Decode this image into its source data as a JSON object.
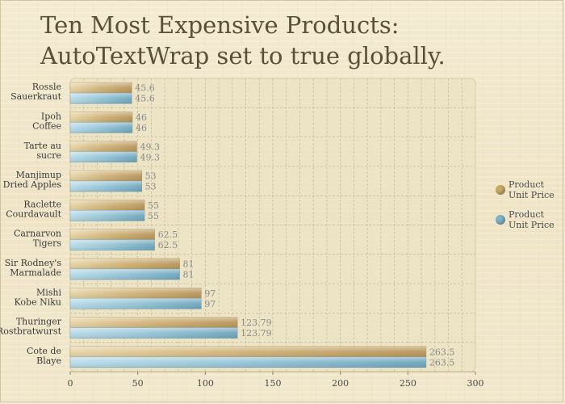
{
  "title": {
    "line1": "Ten Most Expensive Products:",
    "line2": "AutoTextWrap set to true globally."
  },
  "colors": {
    "series1": "#c9a865",
    "series2": "#7fb3c8",
    "value_label": "#8a8a8a",
    "grid": "#c9be9a",
    "plot_bg": "#ebe3c3"
  },
  "chart_data": {
    "type": "bar",
    "orientation": "horizontal",
    "categories": [
      [
        "Rossle",
        "Sauerkraut"
      ],
      [
        "Ipoh",
        "Coffee"
      ],
      [
        "Tarte au",
        "sucre"
      ],
      [
        "Manjimup",
        "Dried Apples"
      ],
      [
        "Raclette",
        "Courdavault"
      ],
      [
        "Carnarvon",
        "Tigers"
      ],
      [
        "Sir Rodney's",
        "Marmalade"
      ],
      [
        "Mishi",
        "Kobe Niku"
      ],
      [
        "Thuringer",
        "Rostbratwurst"
      ],
      [
        "Cote de",
        "Blaye"
      ]
    ],
    "series": [
      {
        "name": "Product Unit Price",
        "legend_lines": [
          "Product",
          "Unit Price"
        ],
        "color": "#c9a865",
        "values": [
          45.6,
          46,
          49.3,
          53,
          55,
          62.5,
          81,
          97,
          123.79,
          263.5
        ],
        "labels": [
          "45.6",
          "46",
          "49.3",
          "53",
          "55",
          "62.5",
          "81",
          "97",
          "123.79",
          "263.5"
        ]
      },
      {
        "name": "Product Unit Price",
        "legend_lines": [
          "Product",
          "Unit Price"
        ],
        "color": "#7fb3c8",
        "values": [
          45.6,
          46,
          49.3,
          53,
          55,
          62.5,
          81,
          97,
          123.79,
          263.5
        ],
        "labels": [
          "45.6",
          "46",
          "49.3",
          "53",
          "55",
          "62.5",
          "81",
          "97",
          "123.79",
          "263.5"
        ]
      }
    ],
    "xlim": [
      0,
      300
    ],
    "xticks": [
      0,
      50,
      100,
      150,
      200,
      250,
      300
    ],
    "xtick_labels": [
      "0",
      "50",
      "100",
      "150",
      "200",
      "250",
      "300"
    ],
    "grid": true,
    "legend_position": "right"
  }
}
